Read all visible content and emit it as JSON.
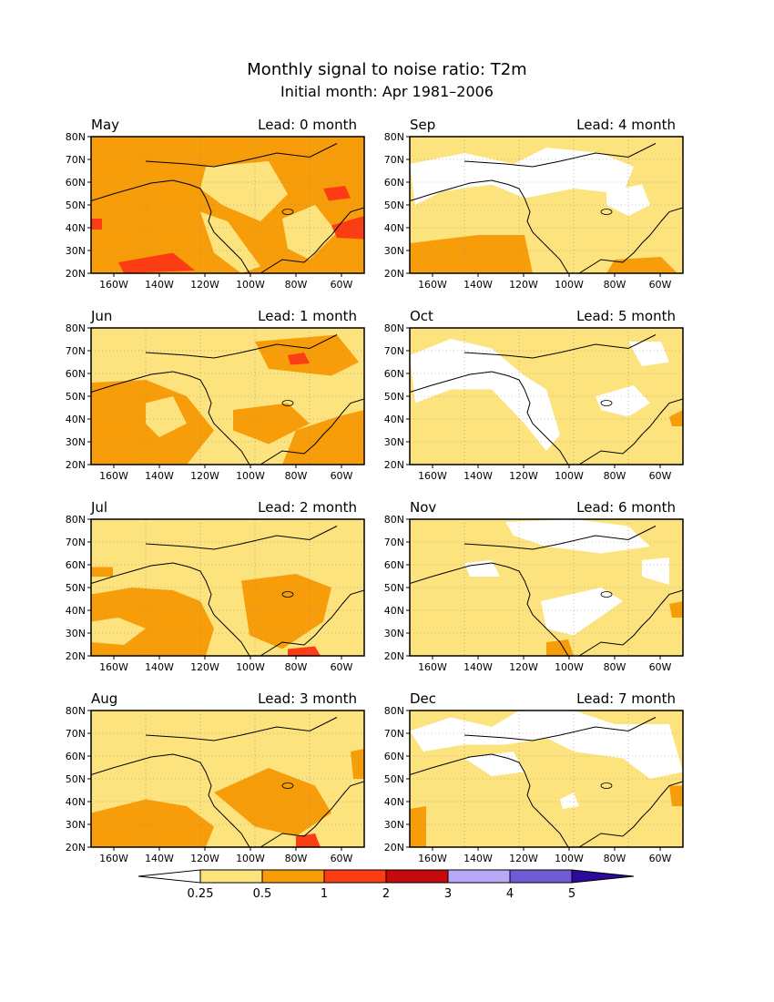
{
  "title": "Monthly signal to noise ratio: T2m",
  "subtitle": "Initial month: Apr 1981–2006",
  "lat_labels": [
    "80N",
    "70N",
    "60N",
    "50N",
    "40N",
    "30N",
    "20N"
  ],
  "lon_labels": [
    "160W",
    "140W",
    "120W",
    "100W",
    "80W",
    "60W"
  ],
  "panels": [
    {
      "month": "May",
      "lead": "Lead: 0 month",
      "base": "#f89d0a",
      "blobs": [
        {
          "c": "#fde37e",
          "p": [
            [
              0.42,
              0.22
            ],
            [
              0.65,
              0.18
            ],
            [
              0.72,
              0.42
            ],
            [
              0.62,
              0.62
            ],
            [
              0.48,
              0.5
            ],
            [
              0.4,
              0.38
            ]
          ]
        },
        {
          "c": "#fde37e",
          "p": [
            [
              0.4,
              0.55
            ],
            [
              0.5,
              0.62
            ],
            [
              0.62,
              0.95
            ],
            [
              0.55,
              1.0
            ],
            [
              0.45,
              0.85
            ]
          ]
        },
        {
          "c": "#fde37e",
          "p": [
            [
              0.7,
              0.6
            ],
            [
              0.82,
              0.5
            ],
            [
              0.9,
              0.7
            ],
            [
              0.8,
              0.9
            ],
            [
              0.72,
              0.82
            ]
          ]
        },
        {
          "c": "#fc3c12",
          "p": [
            [
              0.85,
              0.38
            ],
            [
              0.93,
              0.36
            ],
            [
              0.95,
              0.45
            ],
            [
              0.87,
              0.47
            ]
          ]
        },
        {
          "c": "#fc3c12",
          "p": [
            [
              0.88,
              0.65
            ],
            [
              1.0,
              0.58
            ],
            [
              1.0,
              0.75
            ],
            [
              0.9,
              0.74
            ]
          ]
        },
        {
          "c": "#fc3c12",
          "p": [
            [
              0.1,
              0.92
            ],
            [
              0.3,
              0.85
            ],
            [
              0.38,
              0.98
            ],
            [
              0.12,
              1.0
            ]
          ]
        },
        {
          "c": "#fc3c12",
          "p": [
            [
              0.0,
              0.6
            ],
            [
              0.04,
              0.6
            ],
            [
              0.04,
              0.68
            ],
            [
              0.0,
              0.68
            ]
          ]
        }
      ]
    },
    {
      "month": "Sep",
      "lead": "Lead: 4 month",
      "base": "#fde37e",
      "blobs": [
        {
          "c": "#ffffff",
          "p": [
            [
              0.0,
              0.2
            ],
            [
              0.2,
              0.12
            ],
            [
              0.38,
              0.2
            ],
            [
              0.5,
              0.08
            ],
            [
              0.7,
              0.12
            ],
            [
              0.82,
              0.22
            ],
            [
              0.78,
              0.42
            ],
            [
              0.6,
              0.38
            ],
            [
              0.42,
              0.45
            ],
            [
              0.3,
              0.35
            ],
            [
              0.12,
              0.4
            ],
            [
              0.02,
              0.5
            ]
          ]
        },
        {
          "c": "#ffffff",
          "p": [
            [
              0.72,
              0.4
            ],
            [
              0.85,
              0.35
            ],
            [
              0.88,
              0.5
            ],
            [
              0.8,
              0.58
            ],
            [
              0.72,
              0.5
            ]
          ]
        },
        {
          "c": "#f89d0a",
          "p": [
            [
              0.0,
              0.78
            ],
            [
              0.25,
              0.72
            ],
            [
              0.42,
              0.72
            ],
            [
              0.45,
              1.0
            ],
            [
              0.0,
              1.0
            ]
          ]
        },
        {
          "c": "#f89d0a",
          "p": [
            [
              0.75,
              0.9
            ],
            [
              0.92,
              0.88
            ],
            [
              0.98,
              1.0
            ],
            [
              0.72,
              1.0
            ]
          ]
        }
      ]
    },
    {
      "month": "Jun",
      "lead": "Lead: 1 month",
      "base": "#fde37e",
      "blobs": [
        {
          "c": "#f89d0a",
          "p": [
            [
              0.0,
              0.4
            ],
            [
              0.2,
              0.38
            ],
            [
              0.35,
              0.5
            ],
            [
              0.45,
              0.75
            ],
            [
              0.35,
              1.0
            ],
            [
              0.0,
              1.0
            ]
          ]
        },
        {
          "c": "#fde37e",
          "p": [
            [
              0.2,
              0.55
            ],
            [
              0.3,
              0.5
            ],
            [
              0.35,
              0.7
            ],
            [
              0.25,
              0.8
            ],
            [
              0.2,
              0.7
            ]
          ]
        },
        {
          "c": "#f89d0a",
          "p": [
            [
              0.6,
              0.1
            ],
            [
              0.9,
              0.05
            ],
            [
              0.98,
              0.25
            ],
            [
              0.88,
              0.35
            ],
            [
              0.65,
              0.3
            ]
          ]
        },
        {
          "c": "#fc3c12",
          "p": [
            [
              0.72,
              0.2
            ],
            [
              0.78,
              0.18
            ],
            [
              0.8,
              0.26
            ],
            [
              0.73,
              0.27
            ]
          ]
        },
        {
          "c": "#f89d0a",
          "p": [
            [
              0.52,
              0.6
            ],
            [
              0.72,
              0.55
            ],
            [
              0.8,
              0.7
            ],
            [
              0.65,
              0.85
            ],
            [
              0.52,
              0.75
            ]
          ]
        },
        {
          "c": "#f89d0a",
          "p": [
            [
              0.75,
              0.75
            ],
            [
              0.9,
              0.65
            ],
            [
              1.0,
              0.6
            ],
            [
              1.0,
              1.0
            ],
            [
              0.7,
              1.0
            ]
          ]
        }
      ]
    },
    {
      "month": "Oct",
      "lead": "Lead: 5 month",
      "base": "#fde37e",
      "blobs": [
        {
          "c": "#ffffff",
          "p": [
            [
              0.0,
              0.2
            ],
            [
              0.15,
              0.08
            ],
            [
              0.3,
              0.15
            ],
            [
              0.42,
              0.35
            ],
            [
              0.5,
              0.45
            ],
            [
              0.55,
              0.78
            ],
            [
              0.5,
              0.9
            ],
            [
              0.42,
              0.7
            ],
            [
              0.3,
              0.45
            ],
            [
              0.15,
              0.45
            ],
            [
              0.02,
              0.55
            ]
          ]
        },
        {
          "c": "#ffffff",
          "p": [
            [
              0.68,
              0.5
            ],
            [
              0.82,
              0.42
            ],
            [
              0.88,
              0.55
            ],
            [
              0.8,
              0.65
            ],
            [
              0.7,
              0.6
            ]
          ]
        },
        {
          "c": "#ffffff",
          "p": [
            [
              0.8,
              0.1
            ],
            [
              0.92,
              0.1
            ],
            [
              0.95,
              0.25
            ],
            [
              0.85,
              0.28
            ]
          ]
        },
        {
          "c": "#f89d0a",
          "p": [
            [
              0.95,
              0.65
            ],
            [
              1.0,
              0.6
            ],
            [
              1.0,
              0.72
            ],
            [
              0.96,
              0.72
            ]
          ]
        }
      ]
    },
    {
      "month": "Jul",
      "lead": "Lead: 2 month",
      "base": "#fde37e",
      "blobs": [
        {
          "c": "#f89d0a",
          "p": [
            [
              0.0,
              0.55
            ],
            [
              0.15,
              0.5
            ],
            [
              0.3,
              0.52
            ],
            [
              0.4,
              0.6
            ],
            [
              0.45,
              0.8
            ],
            [
              0.42,
              1.0
            ],
            [
              0.0,
              1.0
            ]
          ]
        },
        {
          "c": "#fde37e",
          "p": [
            [
              0.0,
              0.75
            ],
            [
              0.1,
              0.72
            ],
            [
              0.2,
              0.8
            ],
            [
              0.12,
              0.92
            ],
            [
              0.0,
              0.9
            ]
          ]
        },
        {
          "c": "#f89d0a",
          "p": [
            [
              0.55,
              0.45
            ],
            [
              0.75,
              0.4
            ],
            [
              0.88,
              0.5
            ],
            [
              0.85,
              0.75
            ],
            [
              0.7,
              0.95
            ],
            [
              0.58,
              0.85
            ]
          ]
        },
        {
          "c": "#fc3c12",
          "p": [
            [
              0.72,
              0.95
            ],
            [
              0.82,
              0.93
            ],
            [
              0.84,
              1.0
            ],
            [
              0.72,
              1.0
            ]
          ]
        },
        {
          "c": "#f89d0a",
          "p": [
            [
              0.0,
              0.35
            ],
            [
              0.08,
              0.35
            ],
            [
              0.08,
              0.42
            ],
            [
              0.0,
              0.42
            ]
          ]
        }
      ]
    },
    {
      "month": "Nov",
      "lead": "Lead: 6 month",
      "base": "#fde37e",
      "blobs": [
        {
          "c": "#ffffff",
          "p": [
            [
              0.35,
              0.02
            ],
            [
              0.6,
              0.0
            ],
            [
              0.8,
              0.05
            ],
            [
              0.88,
              0.2
            ],
            [
              0.7,
              0.25
            ],
            [
              0.5,
              0.2
            ],
            [
              0.38,
              0.12
            ]
          ]
        },
        {
          "c": "#ffffff",
          "p": [
            [
              0.2,
              0.32
            ],
            [
              0.3,
              0.3
            ],
            [
              0.33,
              0.42
            ],
            [
              0.22,
              0.42
            ]
          ]
        },
        {
          "c": "#ffffff",
          "p": [
            [
              0.48,
              0.6
            ],
            [
              0.7,
              0.5
            ],
            [
              0.78,
              0.6
            ],
            [
              0.6,
              0.85
            ],
            [
              0.5,
              0.8
            ]
          ]
        },
        {
          "c": "#ffffff",
          "p": [
            [
              0.85,
              0.3
            ],
            [
              0.95,
              0.28
            ],
            [
              0.95,
              0.48
            ],
            [
              0.85,
              0.42
            ]
          ]
        },
        {
          "c": "#f89d0a",
          "p": [
            [
              0.5,
              0.9
            ],
            [
              0.58,
              0.88
            ],
            [
              0.6,
              1.0
            ],
            [
              0.5,
              1.0
            ]
          ]
        },
        {
          "c": "#f89d0a",
          "p": [
            [
              0.95,
              0.62
            ],
            [
              1.0,
              0.6
            ],
            [
              1.0,
              0.72
            ],
            [
              0.96,
              0.72
            ]
          ]
        }
      ]
    },
    {
      "month": "Aug",
      "lead": "Lead: 3 month",
      "base": "#fde37e",
      "blobs": [
        {
          "c": "#f89d0a",
          "p": [
            [
              0.0,
              0.75
            ],
            [
              0.2,
              0.65
            ],
            [
              0.35,
              0.7
            ],
            [
              0.45,
              0.85
            ],
            [
              0.42,
              1.0
            ],
            [
              0.0,
              1.0
            ]
          ]
        },
        {
          "c": "#f89d0a",
          "p": [
            [
              0.45,
              0.6
            ],
            [
              0.65,
              0.42
            ],
            [
              0.82,
              0.55
            ],
            [
              0.88,
              0.75
            ],
            [
              0.75,
              0.92
            ],
            [
              0.6,
              0.85
            ]
          ]
        },
        {
          "c": "#fc3c12",
          "p": [
            [
              0.75,
              0.92
            ],
            [
              0.82,
              0.9
            ],
            [
              0.84,
              1.0
            ],
            [
              0.75,
              1.0
            ]
          ]
        },
        {
          "c": "#f89d0a",
          "p": [
            [
              0.95,
              0.3
            ],
            [
              1.0,
              0.28
            ],
            [
              1.0,
              0.5
            ],
            [
              0.96,
              0.5
            ]
          ]
        }
      ]
    },
    {
      "month": "Dec",
      "lead": "Lead: 7 month",
      "base": "#fde37e",
      "blobs": [
        {
          "c": "#ffffff",
          "p": [
            [
              0.0,
              0.15
            ],
            [
              0.15,
              0.05
            ],
            [
              0.3,
              0.12
            ],
            [
              0.4,
              0.0
            ],
            [
              0.6,
              0.0
            ],
            [
              0.75,
              0.1
            ],
            [
              0.95,
              0.1
            ],
            [
              1.0,
              0.45
            ],
            [
              0.88,
              0.5
            ],
            [
              0.78,
              0.35
            ],
            [
              0.6,
              0.3
            ],
            [
              0.5,
              0.2
            ],
            [
              0.35,
              0.25
            ],
            [
              0.2,
              0.25
            ],
            [
              0.05,
              0.3
            ]
          ]
        },
        {
          "c": "#ffffff",
          "p": [
            [
              0.2,
              0.35
            ],
            [
              0.38,
              0.3
            ],
            [
              0.42,
              0.45
            ],
            [
              0.3,
              0.48
            ]
          ]
        },
        {
          "c": "#ffffff",
          "p": [
            [
              0.55,
              0.65
            ],
            [
              0.6,
              0.6
            ],
            [
              0.62,
              0.7
            ],
            [
              0.56,
              0.72
            ]
          ]
        },
        {
          "c": "#f89d0a",
          "p": [
            [
              0.0,
              0.72
            ],
            [
              0.06,
              0.7
            ],
            [
              0.06,
              1.0
            ],
            [
              0.0,
              1.0
            ]
          ]
        },
        {
          "c": "#f89d0a",
          "p": [
            [
              0.95,
              0.55
            ],
            [
              1.0,
              0.55
            ],
            [
              1.0,
              0.7
            ],
            [
              0.96,
              0.7
            ]
          ]
        }
      ]
    }
  ],
  "colorbar": {
    "colors": [
      "#ffffff",
      "#fde37e",
      "#f89d0a",
      "#fc3c12",
      "#c40a0a",
      "#b9a8f5",
      "#6e5bd6",
      "#2c0a9a"
    ],
    "labels": [
      "0.25",
      "0.5",
      "1",
      "2",
      "3",
      "4",
      "5"
    ]
  }
}
